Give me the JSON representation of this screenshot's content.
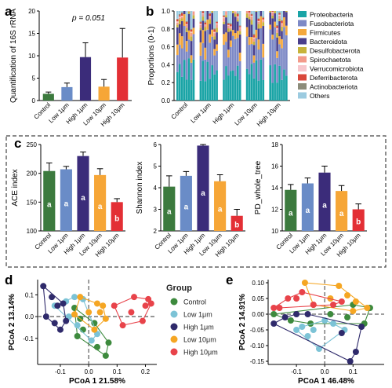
{
  "colors": {
    "Control": "#3c7a3e",
    "Low 1μm": "#6a8cc7",
    "High 1μm": "#3b2c7a",
    "Low 10μm": "#f6a637",
    "High 10μm": "#e32f35",
    "pcoa_Control": "#3d8a3d",
    "pcoa_Low 1μm": "#7cc3d6",
    "pcoa_High 1μm": "#2f2a6b",
    "pcoa_Low 10μm": "#f5a623",
    "pcoa_High 10μm": "#e8434a"
  },
  "chart_data": [
    {
      "panel": "a",
      "type": "bar",
      "categories": [
        "Control",
        "Low 1μm",
        "High 1μm",
        "Low 10μm",
        "High 10μm"
      ],
      "values": [
        1.5,
        3.0,
        9.7,
        3.1,
        9.6
      ],
      "errors": [
        0.4,
        0.9,
        3.2,
        1.6,
        6.5
      ],
      "ylabel": "Quantification of 16S rRNA",
      "ylim": [
        0,
        20
      ],
      "yticks": [
        "0",
        "5",
        "10",
        "15",
        "20"
      ],
      "annotation": "p = 0.051"
    },
    {
      "panel": "b",
      "type": "bar",
      "stacked": true,
      "ylabel": "Proportions (0-1)",
      "ylim": [
        0,
        1.0
      ],
      "yticks": [
        "0.0",
        "0.2",
        "0.4",
        "0.6",
        "0.8",
        "1.0"
      ],
      "groups": [
        "Control",
        "Low 1μm",
        "High 1μm",
        "Low 10μm",
        "High 10μm"
      ],
      "legend": [
        {
          "name": "Proteobacteria",
          "color": "#1aa4a6"
        },
        {
          "name": "Fusobacteriota",
          "color": "#7d89c6"
        },
        {
          "name": "Firmicutes",
          "color": "#f4a83c"
        },
        {
          "name": "Bacteroidota",
          "color": "#4a3f8c"
        },
        {
          "name": "Desulfobacterota",
          "color": "#c7b33a"
        },
        {
          "name": "Spirochaetota",
          "color": "#f39a8a"
        },
        {
          "name": "Verrucomicrobiota",
          "color": "#f7c6cc"
        },
        {
          "name": "Deferribacterota",
          "color": "#d9473a"
        },
        {
          "name": "Actinobacteriota",
          "color": "#8c8c7a"
        },
        {
          "name": "Others",
          "color": "#9ccbe0"
        }
      ],
      "group_means": [
        [
          0.35,
          0.28,
          0.1,
          0.15,
          0.04,
          0.03,
          0.01,
          0.02,
          0.01,
          0.01
        ],
        [
          0.33,
          0.3,
          0.11,
          0.14,
          0.04,
          0.03,
          0.01,
          0.02,
          0.01,
          0.01
        ],
        [
          0.32,
          0.31,
          0.1,
          0.16,
          0.03,
          0.03,
          0.01,
          0.02,
          0.01,
          0.01
        ],
        [
          0.34,
          0.27,
          0.12,
          0.15,
          0.04,
          0.03,
          0.01,
          0.02,
          0.01,
          0.01
        ],
        [
          0.3,
          0.36,
          0.08,
          0.14,
          0.04,
          0.03,
          0.01,
          0.02,
          0.01,
          0.01
        ]
      ]
    },
    {
      "panel": "c1",
      "type": "bar",
      "categories": [
        "Control",
        "Low 1μm",
        "High 1μm",
        "Low 10μm",
        "High 10μm"
      ],
      "values": [
        204,
        207,
        230,
        197,
        150
      ],
      "errors": [
        14,
        5,
        7,
        11,
        6
      ],
      "letters": [
        "a",
        "a",
        "a",
        "a",
        "b"
      ],
      "ylabel": "ACE index",
      "ylim": [
        100,
        250
      ],
      "yticks": [
        "100",
        "150",
        "200",
        "250"
      ]
    },
    {
      "panel": "c2",
      "type": "bar",
      "categories": [
        "Control",
        "Low 1μm",
        "High 1μm",
        "Low 10μm",
        "High 10μm"
      ],
      "values": [
        4.05,
        4.55,
        5.95,
        4.3,
        2.7
      ],
      "errors": [
        0.5,
        0.2,
        0.2,
        0.3,
        0.3
      ],
      "letters": [
        "a",
        "a",
        "a",
        "a",
        "b"
      ],
      "ylabel": "Shannon index",
      "ylim": [
        2,
        6
      ],
      "yticks": [
        "2",
        "3",
        "4",
        "5",
        "6"
      ]
    },
    {
      "panel": "c3",
      "type": "bar",
      "categories": [
        "Control",
        "Low 1μm",
        "High 1μm",
        "Low 10μm",
        "High 10μm"
      ],
      "values": [
        13.8,
        14.4,
        15.4,
        13.7,
        12.0
      ],
      "errors": [
        0.5,
        0.5,
        0.6,
        0.5,
        0.5
      ],
      "letters": [
        "a",
        "a",
        "a",
        "a",
        "b"
      ],
      "ylabel": "PD_whole_tree",
      "ylim": [
        10,
        18
      ],
      "yticks": [
        "10",
        "12",
        "14",
        "16",
        "18"
      ]
    },
    {
      "panel": "d",
      "type": "scatter",
      "xlabel": "PCoA 1 21.58%",
      "ylabel": "PCoA 2 13.14%",
      "xlim": [
        -0.18,
        0.24
      ],
      "ylim": [
        -0.22,
        0.17
      ],
      "xticks": [
        -0.1,
        0.0,
        0.1,
        0.2
      ],
      "xticklabels": [
        "-0.1",
        "0.0",
        "0.1",
        "0.2"
      ],
      "yticks": [
        -0.1,
        0.0,
        0.1
      ],
      "yticklabels": [
        "-0.1",
        "0.0",
        "0.1"
      ],
      "series": [
        {
          "name": "Control",
          "points": [
            [
              -0.05,
              0.04
            ],
            [
              -0.03,
              -0.01
            ],
            [
              -0.02,
              -0.06
            ],
            [
              0.02,
              -0.03
            ],
            [
              0.03,
              -0.14
            ],
            [
              -0.04,
              -0.09
            ],
            [
              0.06,
              -0.18
            ],
            [
              0.07,
              -0.12
            ]
          ]
        },
        {
          "name": "Low 1μm",
          "points": [
            [
              -0.08,
              0.07
            ],
            [
              -0.05,
              0.09
            ],
            [
              -0.12,
              0.05
            ],
            [
              -0.02,
              0.08
            ],
            [
              -0.04,
              -0.04
            ],
            [
              -0.07,
              0.0
            ],
            [
              0.03,
              -0.08
            ],
            [
              0.01,
              -0.11
            ]
          ]
        },
        {
          "name": "High 1μm",
          "points": [
            [
              -0.16,
              0.14
            ],
            [
              -0.13,
              0.09
            ],
            [
              -0.11,
              0.05
            ],
            [
              -0.15,
              0.0
            ],
            [
              -0.12,
              -0.03
            ],
            [
              -0.08,
              -0.02
            ],
            [
              -0.09,
              0.06
            ],
            [
              -0.1,
              -0.06
            ]
          ]
        },
        {
          "name": "Low 10μm",
          "points": [
            [
              -0.03,
              0.09
            ],
            [
              0.04,
              0.02
            ],
            [
              0.02,
              -0.06
            ],
            [
              -0.05,
              0.01
            ],
            [
              0.0,
              0.02
            ],
            [
              0.03,
              0.06
            ],
            [
              0.06,
              -0.01
            ],
            [
              0.05,
              0.05
            ]
          ]
        },
        {
          "name": "High 10μm",
          "points": [
            [
              0.09,
              0.05
            ],
            [
              0.16,
              0.09
            ],
            [
              0.21,
              0.08
            ],
            [
              0.2,
              0.05
            ],
            [
              0.22,
              0.06
            ],
            [
              0.15,
              0.02
            ],
            [
              0.12,
              -0.04
            ],
            [
              0.19,
              -0.02
            ]
          ]
        }
      ]
    },
    {
      "panel": "e",
      "type": "scatter",
      "xlabel": "PCoA 1 46.48%",
      "ylabel": "PCoA 2 14.91%",
      "xlim": [
        -0.2,
        0.21
      ],
      "ylim": [
        -0.16,
        0.11
      ],
      "xticks": [
        -0.1,
        0.0,
        0.1
      ],
      "xticklabels": [
        "-0.1",
        "0.0",
        "0.1"
      ],
      "yticks": [
        -0.15,
        -0.1,
        -0.05,
        0.0,
        0.05,
        0.1
      ],
      "yticklabels": [
        "-0.15",
        "-0.10",
        "-0.05",
        "0.00",
        "0.05",
        "0.10"
      ],
      "series": [
        {
          "name": "Control",
          "points": [
            [
              -0.18,
              0.0
            ],
            [
              -0.12,
              -0.02
            ],
            [
              -0.05,
              -0.03
            ],
            [
              0.02,
              0.0
            ],
            [
              0.08,
              -0.01
            ],
            [
              0.14,
              -0.03
            ],
            [
              0.16,
              0.02
            ],
            [
              0.1,
              0.03
            ]
          ]
        },
        {
          "name": "Low 1μm",
          "points": [
            [
              -0.1,
              -0.05
            ],
            [
              -0.06,
              -0.07
            ],
            [
              -0.02,
              -0.11
            ],
            [
              -0.08,
              -0.04
            ],
            [
              0.03,
              -0.03
            ],
            [
              0.07,
              -0.05
            ],
            [
              0.0,
              -0.02
            ],
            [
              -0.04,
              -0.05
            ]
          ]
        },
        {
          "name": "High 1μm",
          "points": [
            [
              -0.18,
              -0.03
            ],
            [
              -0.1,
              0.0
            ],
            [
              -0.14,
              -0.01
            ],
            [
              0.09,
              -0.15
            ],
            [
              0.11,
              -0.12
            ],
            [
              0.06,
              -0.06
            ],
            [
              0.13,
              -0.04
            ],
            [
              -0.06,
              0.0
            ]
          ]
        },
        {
          "name": "Low 10μm",
          "points": [
            [
              -0.07,
              0.1
            ],
            [
              0.05,
              0.09
            ],
            [
              0.08,
              0.06
            ],
            [
              0.02,
              0.05
            ],
            [
              0.11,
              0.04
            ],
            [
              0.15,
              0.02
            ],
            [
              0.1,
              0.01
            ],
            [
              -0.04,
              0.03
            ]
          ]
        },
        {
          "name": "High 10μm",
          "points": [
            [
              -0.13,
              0.05
            ],
            [
              -0.08,
              0.07
            ],
            [
              0.06,
              0.04
            ],
            [
              -0.18,
              0.02
            ],
            [
              -0.16,
              0.02
            ],
            [
              -0.04,
              0.03
            ],
            [
              0.03,
              0.03
            ],
            [
              -0.1,
              0.05
            ]
          ]
        }
      ]
    }
  ],
  "panel_labels": {
    "a": "a",
    "b": "b",
    "c": "c",
    "d": "d",
    "e": "e"
  },
  "group_legend": {
    "title": "Group",
    "items": [
      "Control",
      "Low 1μm",
      "High 1μm",
      "Low 10μm",
      "High 10μm"
    ]
  }
}
